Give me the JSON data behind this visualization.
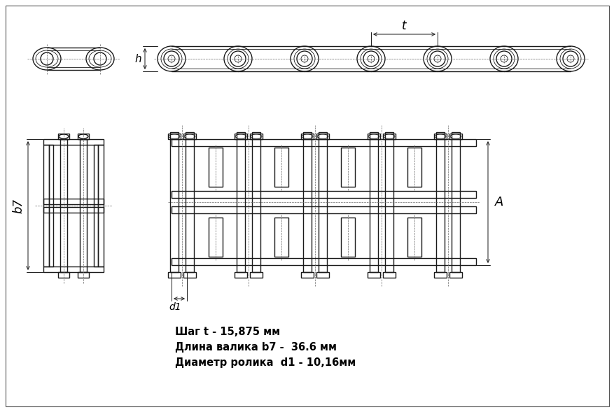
{
  "bg_color": "#ffffff",
  "line_color": "#1a1a1a",
  "text_color": "#000000",
  "fig_width": 8.78,
  "fig_height": 5.89,
  "specs_lines": [
    "Шаг t - 15,875 мм",
    "Длина валика b7 -  36.6 мм",
    "Диаметр ролика  d1 - 10,16мм"
  ],
  "label_t": "t",
  "label_h": "h",
  "label_b7": "b7",
  "label_A": "A",
  "label_d1": "d1"
}
